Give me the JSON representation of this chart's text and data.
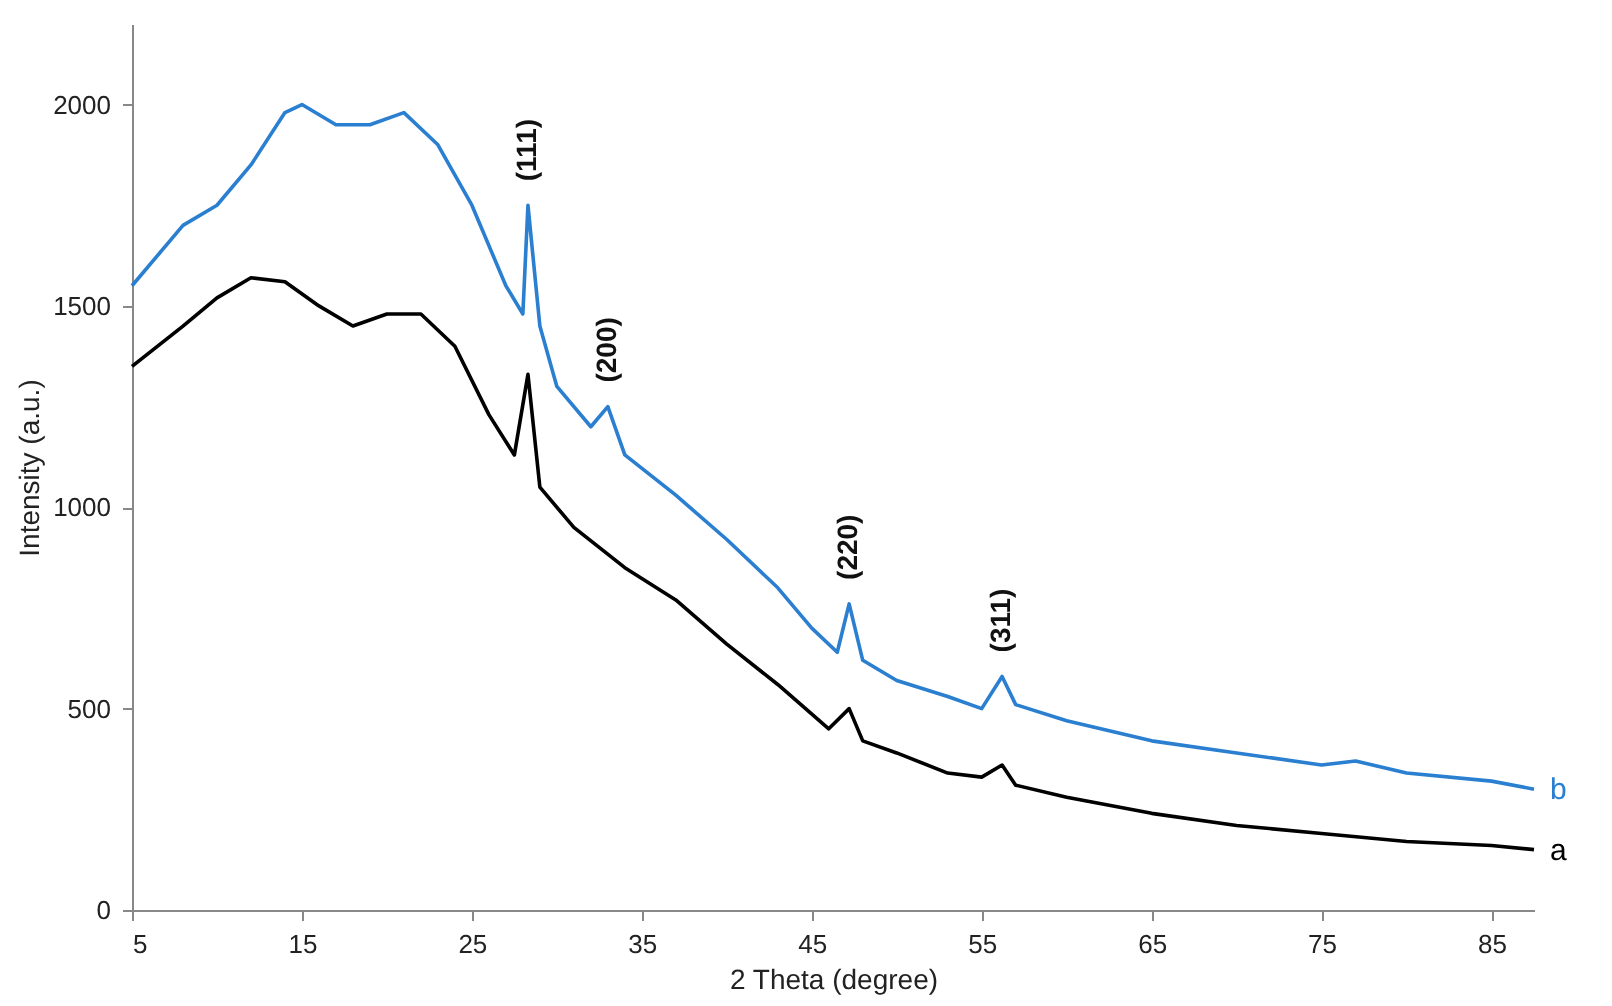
{
  "chart_data": {
    "type": "line",
    "xlabel": "2 Theta (degree)",
    "ylabel": "Intensity (a.u.)",
    "xlim": [
      5,
      87.5
    ],
    "xticks": [
      5,
      15,
      25,
      35,
      45,
      55,
      65,
      75,
      85
    ],
    "ylim": [
      0,
      2200
    ],
    "yticks": [
      0,
      500,
      1000,
      1500,
      2000
    ],
    "grid": false,
    "legend": false,
    "marker": "none",
    "line_style": "solid",
    "series": [
      {
        "name": "b",
        "color": "#2a7fd0",
        "x": [
          5,
          8,
          10,
          12,
          14,
          15,
          17,
          19,
          21,
          23,
          25,
          27,
          28,
          28.3,
          29,
          30,
          32,
          33,
          34,
          37,
          40,
          43,
          45,
          46.5,
          47.2,
          48,
          50,
          53,
          55,
          56.2,
          57,
          60,
          65,
          70,
          75,
          77,
          80,
          85,
          87.5
        ],
        "values": [
          1550,
          1700,
          1750,
          1850,
          1980,
          2000,
          1950,
          1950,
          1980,
          1900,
          1750,
          1550,
          1480,
          1750,
          1450,
          1300,
          1200,
          1250,
          1130,
          1030,
          920,
          800,
          700,
          640,
          760,
          620,
          570,
          530,
          500,
          580,
          510,
          470,
          420,
          390,
          360,
          370,
          340,
          320,
          300
        ]
      },
      {
        "name": "a",
        "color": "#000000",
        "x": [
          5,
          8,
          10,
          12,
          14,
          16,
          18,
          20,
          22,
          24,
          26,
          27.5,
          28.3,
          29,
          31,
          34,
          37,
          40,
          43,
          46,
          47.2,
          48,
          50,
          53,
          55,
          56.2,
          57,
          60,
          65,
          70,
          75,
          80,
          85,
          87.5
        ],
        "values": [
          1350,
          1450,
          1520,
          1570,
          1560,
          1500,
          1450,
          1480,
          1480,
          1400,
          1230,
          1130,
          1330,
          1050,
          950,
          850,
          770,
          660,
          560,
          450,
          500,
          420,
          390,
          340,
          330,
          360,
          310,
          280,
          240,
          210,
          190,
          170,
          160,
          150
        ]
      }
    ],
    "annotations": [
      {
        "text": "(111)",
        "x": 28.3,
        "y": 1750
      },
      {
        "text": "(200)",
        "x": 33,
        "y": 1250
      },
      {
        "text": "(220)",
        "x": 47.2,
        "y": 760
      },
      {
        "text": "(311)",
        "x": 56.2,
        "y": 580
      }
    ]
  }
}
